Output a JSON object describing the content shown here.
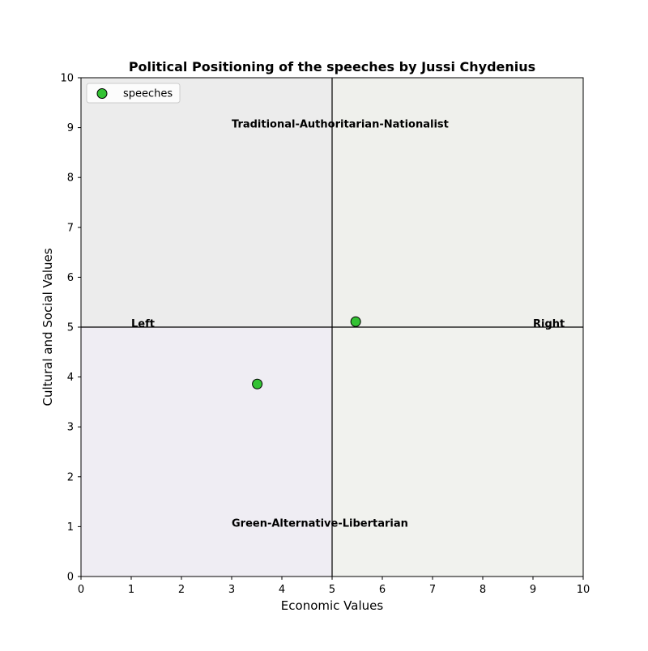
{
  "chart_data": {
    "type": "scatter",
    "title": "Political Positioning of the speeches by Jussi Chydenius",
    "xlabel": "Economic Values",
    "ylabel": "Cultural and Social Values",
    "xlim": [
      0,
      10
    ],
    "ylim": [
      0,
      10
    ],
    "x_ticks": [
      "0",
      "1",
      "2",
      "3",
      "4",
      "5",
      "6",
      "7",
      "8",
      "9",
      "10"
    ],
    "y_ticks": [
      "0",
      "1",
      "2",
      "3",
      "4",
      "5",
      "6",
      "7",
      "8",
      "9",
      "10"
    ],
    "grid": false,
    "legend_position": "top-left",
    "center_lines": {
      "x": 5,
      "y": 5
    },
    "quadrant_colors": {
      "top_left": "#ececec",
      "top_right": "#eff0ec",
      "bottom_left": "#efedf3",
      "bottom_right": "#f1f2ee"
    },
    "annotations": [
      {
        "text": "Traditional-Authoritarian-Nationalist",
        "x": 3,
        "y": 9
      },
      {
        "text": "Green-Alternative-Libertarian",
        "x": 3,
        "y": 1
      },
      {
        "text": "Left",
        "x": 1,
        "y": 5
      },
      {
        "text": "Right",
        "x": 9,
        "y": 5
      }
    ],
    "series": [
      {
        "name": "speeches",
        "color": "#33c233",
        "edge_color": "#000000",
        "points": [
          {
            "x": 5.47,
            "y": 5.11
          },
          {
            "x": 3.51,
            "y": 3.86
          }
        ]
      }
    ]
  }
}
